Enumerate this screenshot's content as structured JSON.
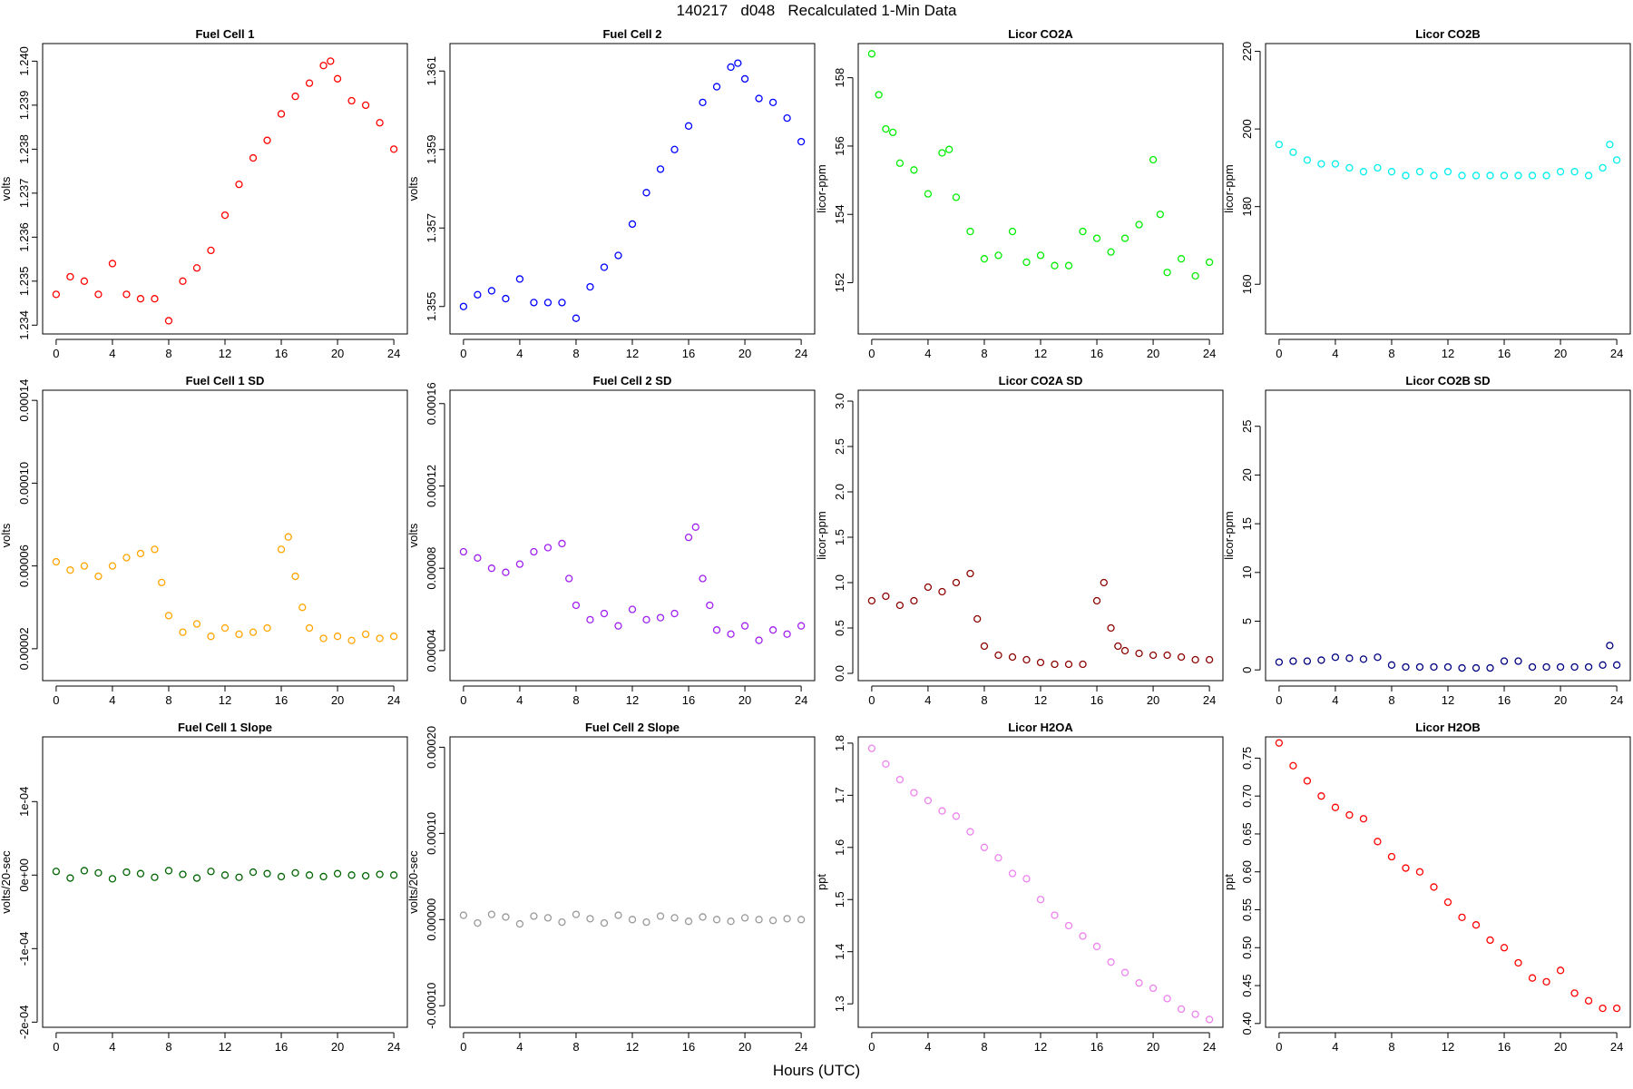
{
  "figure": {
    "title": "140217   d048   Recalculated 1-Min Data",
    "xlabel": "Hours (UTC)"
  },
  "chart_data": [
    {
      "type": "scatter",
      "title": "Fuel Cell 1",
      "ylabel": "volts",
      "color": "#ff0000",
      "xlim": [
        -0.96,
        24.96
      ],
      "ylim": [
        1.2338,
        1.2404
      ],
      "xticks": [
        0,
        4,
        8,
        12,
        16,
        20,
        24
      ],
      "xtick_labels": [
        "0",
        "4",
        "8",
        "12",
        "16",
        "20",
        "24"
      ],
      "yticks": [
        1.234,
        1.235,
        1.236,
        1.237,
        1.238,
        1.239,
        1.24
      ],
      "ytick_labels": [
        "1.234",
        "1.235",
        "1.236",
        "1.237",
        "1.238",
        "1.239",
        "1.240"
      ],
      "x": [
        0,
        1,
        2,
        3,
        4,
        5,
        6,
        7,
        8,
        9,
        10,
        11,
        12,
        13,
        14,
        15,
        16,
        17,
        18,
        19,
        19.5,
        20,
        21,
        22,
        23,
        24
      ],
      "y": [
        1.2347,
        1.2351,
        1.235,
        1.2347,
        1.2354,
        1.2347,
        1.2346,
        1.2346,
        1.2341,
        1.235,
        1.2353,
        1.2357,
        1.2365,
        1.2372,
        1.2378,
        1.2382,
        1.2388,
        1.2392,
        1.2395,
        1.2399,
        1.24,
        1.2396,
        1.2391,
        1.239,
        1.2386,
        1.238
      ]
    },
    {
      "type": "scatter",
      "title": "Fuel Cell 2",
      "ylabel": "volts",
      "color": "#0000ff",
      "xlim": [
        -0.96,
        24.96
      ],
      "ylim": [
        1.3543,
        1.3617
      ],
      "xticks": [
        0,
        4,
        8,
        12,
        16,
        20,
        24
      ],
      "xtick_labels": [
        "0",
        "4",
        "8",
        "12",
        "16",
        "20",
        "24"
      ],
      "yticks": [
        1.355,
        1.357,
        1.359,
        1.361
      ],
      "ytick_labels": [
        "1.355",
        "1.357",
        "1.359",
        "1.361"
      ],
      "x": [
        0,
        1,
        2,
        3,
        4,
        5,
        6,
        7,
        8,
        9,
        10,
        11,
        12,
        13,
        14,
        15,
        16,
        17,
        18,
        19,
        19.5,
        20,
        21,
        22,
        23,
        24
      ],
      "y": [
        1.355,
        1.3553,
        1.3554,
        1.3552,
        1.3557,
        1.3551,
        1.3551,
        1.3551,
        1.3547,
        1.3555,
        1.356,
        1.3563,
        1.3571,
        1.3579,
        1.3585,
        1.359,
        1.3596,
        1.3602,
        1.3606,
        1.3611,
        1.3612,
        1.3608,
        1.3603,
        1.3602,
        1.3598,
        1.3592
      ]
    },
    {
      "type": "scatter",
      "title": "Licor CO2A",
      "ylabel": "licor-ppm",
      "color": "#00ee00",
      "xlim": [
        -0.96,
        24.96
      ],
      "ylim": [
        150.5,
        159.0
      ],
      "xticks": [
        0,
        4,
        8,
        12,
        16,
        20,
        24
      ],
      "xtick_labels": [
        "0",
        "4",
        "8",
        "12",
        "16",
        "20",
        "24"
      ],
      "yticks": [
        152,
        154,
        156,
        158
      ],
      "ytick_labels": [
        "152",
        "154",
        "156",
        "158"
      ],
      "x": [
        0,
        0.5,
        1,
        1.5,
        2,
        3,
        4,
        5,
        5.5,
        6,
        7,
        8,
        9,
        10,
        11,
        12,
        13,
        14,
        15,
        16,
        17,
        18,
        19,
        20,
        20.5,
        21,
        22,
        23,
        24
      ],
      "y": [
        158.7,
        157.5,
        156.5,
        156.4,
        155.5,
        155.3,
        154.6,
        155.8,
        155.9,
        154.5,
        153.5,
        152.7,
        152.8,
        153.5,
        152.6,
        152.8,
        152.5,
        152.5,
        153.5,
        153.3,
        152.9,
        153.3,
        153.7,
        155.6,
        154.0,
        152.3,
        152.7,
        152.2,
        152.6
      ]
    },
    {
      "type": "scatter",
      "title": "Licor CO2B",
      "ylabel": "licor-ppm",
      "color": "#00eeee",
      "xlim": [
        -0.96,
        24.96
      ],
      "ylim": [
        147.2,
        222.0
      ],
      "xticks": [
        0,
        4,
        8,
        12,
        16,
        20,
        24
      ],
      "xtick_labels": [
        "0",
        "4",
        "8",
        "12",
        "16",
        "20",
        "24"
      ],
      "yticks": [
        160,
        180,
        200,
        220
      ],
      "ytick_labels": [
        "160",
        "180",
        "200",
        "220"
      ],
      "x": [
        0,
        1,
        2,
        3,
        4,
        5,
        6,
        7,
        8,
        9,
        10,
        11,
        12,
        13,
        14,
        15,
        16,
        17,
        18,
        19,
        20,
        21,
        22,
        23,
        23.5,
        24
      ],
      "y": [
        196,
        194,
        192,
        191,
        191,
        190,
        189,
        190,
        189,
        188,
        189,
        188,
        189,
        188,
        188,
        188,
        188,
        188,
        188,
        188,
        189,
        189,
        188,
        190,
        196,
        192
      ]
    },
    {
      "type": "scatter",
      "title": "Fuel Cell 1 SD",
      "ylabel": "volts",
      "color": "#ffa500",
      "xlim": [
        -0.96,
        24.96
      ],
      "ylim": [
        4.6e-06,
        0.0001449
      ],
      "xticks": [
        0,
        4,
        8,
        12,
        16,
        20,
        24
      ],
      "xtick_labels": [
        "0",
        "4",
        "8",
        "12",
        "16",
        "20",
        "24"
      ],
      "yticks": [
        2e-05,
        6e-05,
        0.0001,
        0.00014
      ],
      "ytick_labels": [
        "0.00002",
        "0.00006",
        "0.00010",
        "0.00014"
      ],
      "x": [
        0,
        1,
        2,
        3,
        4,
        5,
        6,
        7,
        7.5,
        8,
        9,
        10,
        11,
        12,
        13,
        14,
        15,
        16,
        16.5,
        17,
        17.5,
        18,
        19,
        20,
        21,
        22,
        23,
        24
      ],
      "y": [
        6.2e-05,
        5.8e-05,
        6e-05,
        5.5e-05,
        6e-05,
        6.4e-05,
        6.6e-05,
        6.8e-05,
        5.2e-05,
        3.6e-05,
        2.8e-05,
        3.2e-05,
        2.6e-05,
        3e-05,
        2.7e-05,
        2.8e-05,
        3e-05,
        6.8e-05,
        7.4e-05,
        5.5e-05,
        4e-05,
        3e-05,
        2.5e-05,
        2.6e-05,
        2.4e-05,
        2.7e-05,
        2.5e-05,
        2.6e-05
      ]
    },
    {
      "type": "scatter",
      "title": "Fuel Cell 2 SD",
      "ylabel": "volts",
      "color": "#a020f0",
      "xlim": [
        -0.96,
        24.96
      ],
      "ylim": [
        2.54e-05,
        0.0001665
      ],
      "xticks": [
        0,
        4,
        8,
        12,
        16,
        20,
        24
      ],
      "xtick_labels": [
        "0",
        "4",
        "8",
        "12",
        "16",
        "20",
        "24"
      ],
      "yticks": [
        4e-05,
        8e-05,
        0.00012,
        0.00016
      ],
      "ytick_labels": [
        "0.00004",
        "0.00008",
        "0.00012",
        "0.00016"
      ],
      "x": [
        0,
        1,
        2,
        3,
        4,
        5,
        6,
        7,
        7.5,
        8,
        9,
        10,
        11,
        12,
        13,
        14,
        15,
        16,
        16.5,
        17,
        17.5,
        18,
        19,
        20,
        21,
        22,
        23,
        24
      ],
      "y": [
        8.8e-05,
        8.5e-05,
        8e-05,
        7.8e-05,
        8.2e-05,
        8.8e-05,
        9e-05,
        9.2e-05,
        7.5e-05,
        6.2e-05,
        5.5e-05,
        5.8e-05,
        5.2e-05,
        6e-05,
        5.5e-05,
        5.6e-05,
        5.8e-05,
        9.5e-05,
        0.0001,
        7.5e-05,
        6.2e-05,
        5e-05,
        4.8e-05,
        5.2e-05,
        4.5e-05,
        5e-05,
        4.8e-05,
        5.2e-05
      ]
    },
    {
      "type": "scatter",
      "title": "Licor CO2A SD",
      "ylabel": "licor-ppm",
      "color": "#8b0000",
      "xlim": [
        -0.96,
        24.96
      ],
      "ylim": [
        -0.08,
        3.12
      ],
      "xticks": [
        0,
        4,
        8,
        12,
        16,
        20,
        24
      ],
      "xtick_labels": [
        "0",
        "4",
        "8",
        "12",
        "16",
        "20",
        "24"
      ],
      "yticks": [
        0,
        0.5,
        1.0,
        1.5,
        2.0,
        2.5,
        3.0
      ],
      "ytick_labels": [
        "0.0",
        "0.5",
        "1.0",
        "1.5",
        "2.0",
        "2.5",
        "3.0"
      ],
      "x": [
        0,
        1,
        2,
        3,
        4,
        5,
        6,
        7,
        7.5,
        8,
        9,
        10,
        11,
        12,
        13,
        14,
        15,
        16,
        16.5,
        17,
        17.5,
        18,
        19,
        20,
        21,
        22,
        23,
        24
      ],
      "y": [
        0.8,
        0.85,
        0.75,
        0.8,
        0.95,
        0.9,
        1.0,
        1.1,
        0.6,
        0.3,
        0.2,
        0.18,
        0.15,
        0.12,
        0.1,
        0.1,
        0.1,
        0.8,
        1.0,
        0.5,
        0.3,
        0.25,
        0.22,
        0.2,
        0.2,
        0.18,
        0.15,
        0.15
      ]
    },
    {
      "type": "scatter",
      "title": "Licor CO2B SD",
      "ylabel": "licor-ppm",
      "color": "#000080",
      "xlim": [
        -0.96,
        24.96
      ],
      "ylim": [
        -1.1,
        28.7
      ],
      "xticks": [
        0,
        4,
        8,
        12,
        16,
        20,
        24
      ],
      "xtick_labels": [
        "0",
        "4",
        "8",
        "12",
        "16",
        "20",
        "24"
      ],
      "yticks": [
        0,
        5,
        10,
        15,
        20,
        25
      ],
      "ytick_labels": [
        "0",
        "5",
        "10",
        "15",
        "20",
        "25"
      ],
      "x": [
        0,
        1,
        2,
        3,
        4,
        5,
        6,
        7,
        8,
        9,
        10,
        11,
        12,
        13,
        14,
        15,
        16,
        17,
        18,
        19,
        20,
        21,
        22,
        23,
        23.5,
        24
      ],
      "y": [
        0.8,
        0.9,
        0.9,
        1.0,
        1.3,
        1.2,
        1.1,
        1.3,
        0.5,
        0.3,
        0.3,
        0.3,
        0.3,
        0.2,
        0.2,
        0.2,
        0.9,
        0.9,
        0.3,
        0.3,
        0.3,
        0.3,
        0.3,
        0.5,
        2.5,
        0.5
      ]
    },
    {
      "type": "scatter",
      "title": "Fuel Cell 1 Slope",
      "ylabel": "volts/20-sec",
      "color": "#006400",
      "xlim": [
        -0.96,
        24.96
      ],
      "ylim": [
        -0.000207,
        0.000188
      ],
      "xticks": [
        0,
        4,
        8,
        12,
        16,
        20,
        24
      ],
      "xtick_labels": [
        "0",
        "4",
        "8",
        "12",
        "16",
        "20",
        "24"
      ],
      "yticks": [
        -0.0002,
        -0.0001,
        0,
        0.0001
      ],
      "ytick_labels": [
        "-2e-04",
        "-1e-04",
        "0e+00",
        "1e-04"
      ],
      "x": [
        0,
        1,
        2,
        3,
        4,
        5,
        6,
        7,
        8,
        9,
        10,
        11,
        12,
        13,
        14,
        15,
        16,
        17,
        18,
        19,
        20,
        21,
        22,
        23,
        24
      ],
      "y": [
        5e-06,
        -4e-06,
        6e-06,
        3e-06,
        -5e-06,
        4e-06,
        2e-06,
        -3e-06,
        6e-06,
        1e-06,
        -4e-06,
        5e-06,
        0.0,
        -3e-06,
        4e-06,
        2e-06,
        -2e-06,
        3e-06,
        0.0,
        -2e-06,
        2e-06,
        0.0,
        -1e-06,
        1e-06,
        0.0
      ]
    },
    {
      "type": "scatter",
      "title": "Fuel Cell 2 Slope",
      "ylabel": "volts/20-sec",
      "color": "#999999",
      "xlim": [
        -0.96,
        24.96
      ],
      "ylim": [
        -0.000125,
        0.000212
      ],
      "xticks": [
        0,
        4,
        8,
        12,
        16,
        20,
        24
      ],
      "xtick_labels": [
        "0",
        "4",
        "8",
        "12",
        "16",
        "20",
        "24"
      ],
      "yticks": [
        -0.0001,
        0,
        0.0001,
        0.0002
      ],
      "ytick_labels": [
        "-0.00010",
        "0.00000",
        "0.00010",
        "0.00020"
      ],
      "x": [
        0,
        1,
        2,
        3,
        4,
        5,
        6,
        7,
        8,
        9,
        10,
        11,
        12,
        13,
        14,
        15,
        16,
        17,
        18,
        19,
        20,
        21,
        22,
        23,
        24
      ],
      "y": [
        5e-06,
        -4e-06,
        6e-06,
        3e-06,
        -5e-06,
        4e-06,
        2e-06,
        -3e-06,
        6e-06,
        1e-06,
        -4e-06,
        5e-06,
        0.0,
        -3e-06,
        4e-06,
        2e-06,
        -2e-06,
        3e-06,
        0.0,
        -2e-06,
        2e-06,
        0.0,
        -1e-06,
        1e-06,
        0.0
      ]
    },
    {
      "type": "scatter",
      "title": "Licor H2OA",
      "ylabel": "ppt",
      "color": "#ee82ee",
      "xlim": [
        -0.96,
        24.96
      ],
      "ylim": [
        1.255,
        1.812
      ],
      "xticks": [
        0,
        4,
        8,
        12,
        16,
        20,
        24
      ],
      "xtick_labels": [
        "0",
        "4",
        "8",
        "12",
        "16",
        "20",
        "24"
      ],
      "yticks": [
        1.3,
        1.4,
        1.5,
        1.6,
        1.7,
        1.8
      ],
      "ytick_labels": [
        "1.3",
        "1.4",
        "1.5",
        "1.6",
        "1.7",
        "1.8"
      ],
      "x": [
        0,
        1,
        2,
        3,
        4,
        5,
        6,
        7,
        8,
        9,
        10,
        11,
        12,
        13,
        14,
        15,
        16,
        17,
        18,
        19,
        20,
        21,
        22,
        23,
        24
      ],
      "y": [
        1.79,
        1.76,
        1.73,
        1.705,
        1.69,
        1.67,
        1.66,
        1.63,
        1.6,
        1.58,
        1.55,
        1.54,
        1.5,
        1.47,
        1.45,
        1.43,
        1.41,
        1.38,
        1.36,
        1.34,
        1.33,
        1.31,
        1.29,
        1.28,
        1.27
      ]
    },
    {
      "type": "scatter",
      "title": "Licor H2OB",
      "ylabel": "ppt",
      "color": "#ff0000",
      "xlim": [
        -0.96,
        24.96
      ],
      "ylim": [
        0.395,
        0.778
      ],
      "xticks": [
        0,
        4,
        8,
        12,
        16,
        20,
        24
      ],
      "xtick_labels": [
        "0",
        "4",
        "8",
        "12",
        "16",
        "20",
        "24"
      ],
      "yticks": [
        0.4,
        0.45,
        0.5,
        0.55,
        0.6,
        0.65,
        0.7,
        0.75
      ],
      "ytick_labels": [
        "0.40",
        "0.45",
        "0.50",
        "0.55",
        "0.60",
        "0.65",
        "0.70",
        "0.75"
      ],
      "x": [
        0,
        1,
        2,
        3,
        4,
        5,
        6,
        7,
        8,
        9,
        10,
        11,
        12,
        13,
        14,
        15,
        16,
        17,
        18,
        19,
        20,
        21,
        22,
        23,
        24
      ],
      "y": [
        0.77,
        0.74,
        0.72,
        0.7,
        0.685,
        0.675,
        0.67,
        0.64,
        0.62,
        0.605,
        0.6,
        0.58,
        0.56,
        0.54,
        0.53,
        0.51,
        0.5,
        0.48,
        0.46,
        0.455,
        0.47,
        0.44,
        0.43,
        0.42,
        0.42
      ]
    }
  ]
}
